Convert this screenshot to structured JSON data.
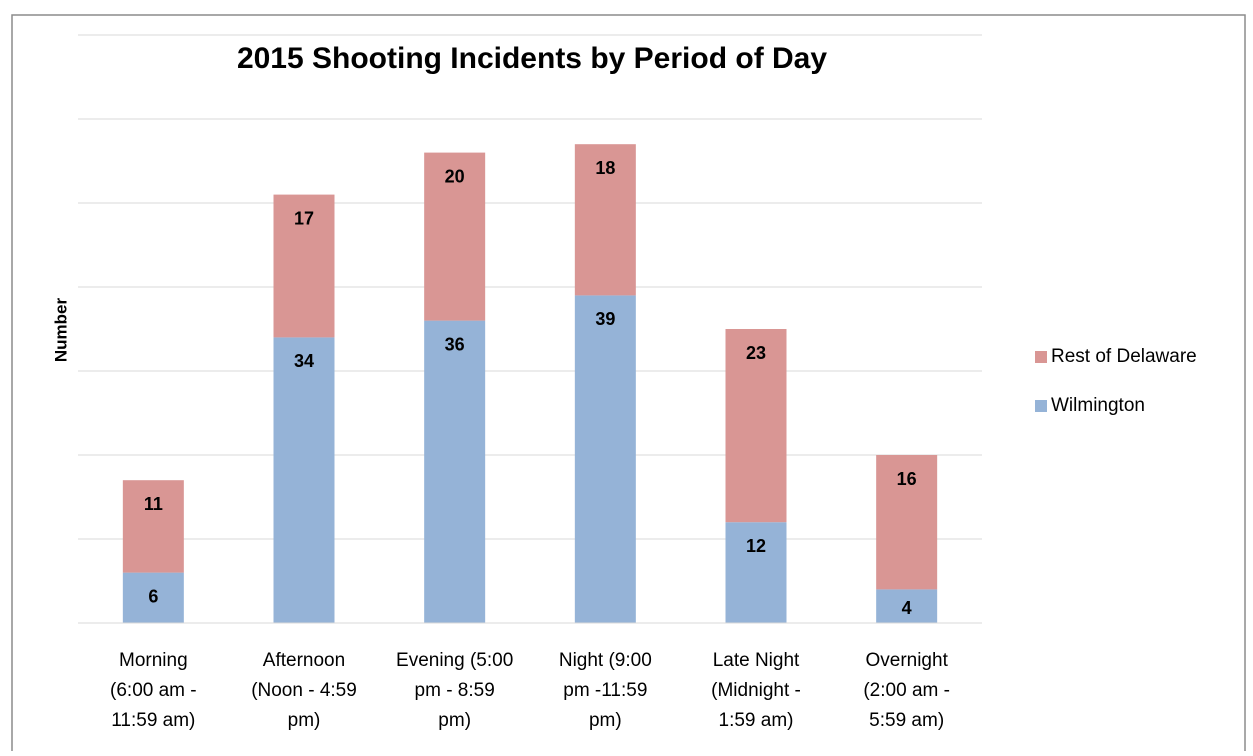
{
  "chart_data": {
    "type": "stacked_bar",
    "title": "2015 Shooting Incidents by Period of Day",
    "y_label": "Number",
    "categories": [
      [
        "Morning",
        "(6:00 am -",
        "11:59 am)"
      ],
      [
        "Afternoon",
        "(Noon - 4:59",
        "pm)"
      ],
      [
        "Evening (5:00",
        "pm - 8:59",
        "pm)"
      ],
      [
        "Night (9:00",
        "pm -11:59",
        "pm)"
      ],
      [
        "Late Night",
        "(Midnight -",
        "1:59 am)"
      ],
      [
        "Overnight",
        "(2:00 am -",
        "5:59 am)"
      ]
    ],
    "series": [
      {
        "name": "Wilmington",
        "color": "#95b3d7",
        "values": [
          6,
          34,
          36,
          39,
          12,
          4
        ]
      },
      {
        "name": "Rest of Delaware",
        "color": "#d99694",
        "values": [
          11,
          17,
          20,
          18,
          23,
          16
        ]
      }
    ],
    "ylim": [
      0,
      70
    ],
    "yticks": [
      0,
      10,
      20,
      30,
      40,
      50,
      60,
      70
    ],
    "ytick_labels": false,
    "grid": true,
    "legend": "right"
  }
}
